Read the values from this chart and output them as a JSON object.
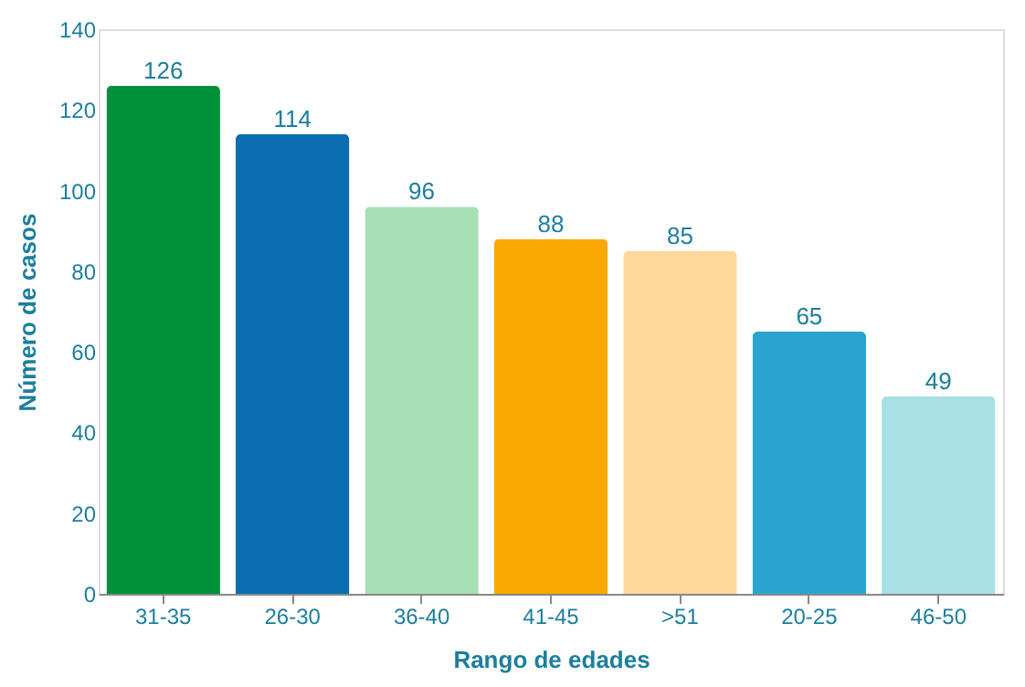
{
  "chart_data": {
    "type": "bar",
    "xlabel": "Rango de edades",
    "ylabel": "Número de casos",
    "categories": [
      "31-35",
      "26-30",
      "36-40",
      "41-45",
      ">51",
      "20-25",
      "46-50"
    ],
    "values": [
      126,
      114,
      96,
      88,
      85,
      65,
      49
    ],
    "colors": [
      "#00923a",
      "#0a6db0",
      "#a6dfb4",
      "#f8a800",
      "#fdd89a",
      "#2ba3d1",
      "#a7e1e5"
    ],
    "ylim": [
      0,
      140
    ],
    "yticks": [
      0,
      20,
      40,
      60,
      80,
      100,
      120,
      140
    ],
    "data_labels": true,
    "grid": false,
    "legend": false
  }
}
